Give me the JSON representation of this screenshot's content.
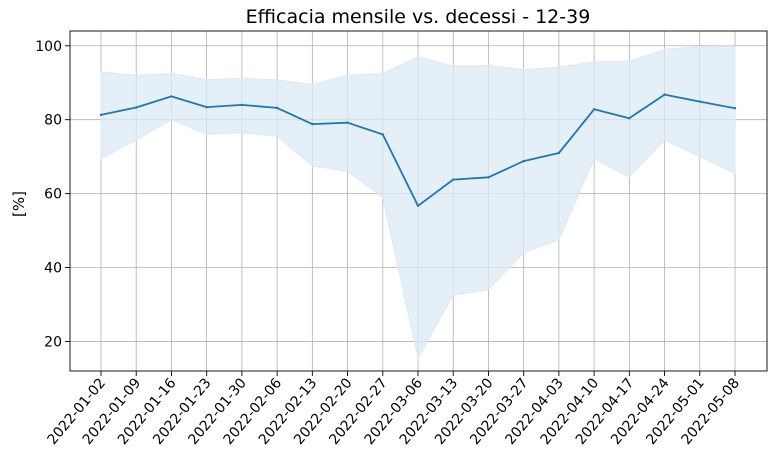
{
  "chart_data": {
    "type": "line",
    "title": "Efficacia mensile vs. decessi - 12-39",
    "xlabel": "",
    "ylabel": "[%]",
    "ylim": [
      12,
      104
    ],
    "yticks": [
      20,
      40,
      60,
      80,
      100
    ],
    "grid": true,
    "categories": [
      "2022-01-02",
      "2022-01-09",
      "2022-01-16",
      "2022-01-23",
      "2022-01-30",
      "2022-02-06",
      "2022-02-13",
      "2022-02-20",
      "2022-02-27",
      "2022-03-06",
      "2022-03-13",
      "2022-03-20",
      "2022-03-27",
      "2022-04-03",
      "2022-04-10",
      "2022-04-17",
      "2022-04-24",
      "2022-05-01",
      "2022-05-08"
    ],
    "series": [
      {
        "values": [
          81.3,
          83.3,
          86.3,
          83.4,
          84.0,
          83.2,
          78.8,
          79.2,
          76.0,
          56.7,
          63.8,
          64.4,
          68.8,
          71.0,
          82.8,
          80.4,
          86.8,
          84.9,
          83.1
        ],
        "lower": [
          69.5,
          74.5,
          80.0,
          76.0,
          76.5,
          75.5,
          67.5,
          66.0,
          59.0,
          15.5,
          32.5,
          34.0,
          44.0,
          47.5,
          69.5,
          64.5,
          74.5,
          70.0,
          65.5
        ],
        "upper": [
          93.0,
          92.0,
          92.5,
          90.8,
          91.2,
          90.8,
          89.5,
          92.0,
          92.5,
          97.0,
          94.5,
          94.7,
          93.5,
          94.2,
          95.7,
          95.8,
          99.0,
          99.8,
          99.9
        ],
        "color": "#1f77b4",
        "band_color": "#dce9f5"
      }
    ]
  }
}
